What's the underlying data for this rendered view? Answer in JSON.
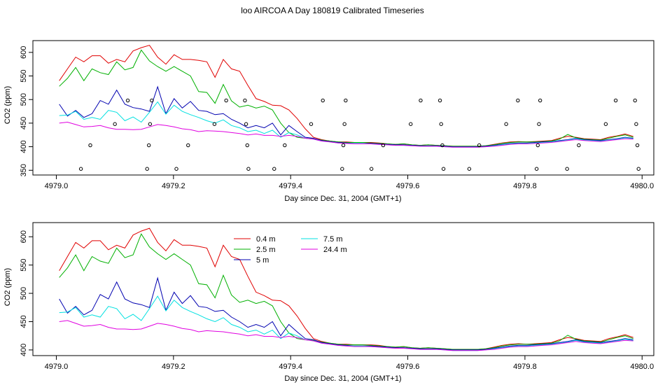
{
  "title": "loo AIRCOA A  Day 180819  Calibrated Timeseries",
  "colors": {
    "0.4 m": "#e00000",
    "2.5 m": "#00b000",
    "5 m": "#0000b0",
    "7.5 m": "#00e0e0",
    "24.4 m": "#e000e0"
  },
  "chart_data": [
    {
      "type": "line",
      "xlabel": "Day since Dec. 31, 2004 (GMT+1)",
      "ylabel": "CO2 (ppm)",
      "xlim": [
        4978.96,
        4980.02
      ],
      "ylim": [
        340,
        625
      ],
      "xticks": [
        "4979.0",
        "4979.2",
        "4979.4",
        "4979.6",
        "4979.8",
        "4980.0"
      ],
      "yticks": [
        "350",
        "400",
        "450",
        "500",
        "550",
        "600"
      ],
      "series_ref": "shared",
      "points": [
        {
          "x": 4979.042,
          "y": 353
        },
        {
          "x": 4979.058,
          "y": 403
        },
        {
          "x": 4979.1,
          "y": 448
        },
        {
          "x": 4979.122,
          "y": 498
        },
        {
          "x": 4979.155,
          "y": 353
        },
        {
          "x": 4979.158,
          "y": 403
        },
        {
          "x": 4979.16,
          "y": 448
        },
        {
          "x": 4979.163,
          "y": 498
        },
        {
          "x": 4979.205,
          "y": 353
        },
        {
          "x": 4979.225,
          "y": 403
        },
        {
          "x": 4979.27,
          "y": 448
        },
        {
          "x": 4979.29,
          "y": 498
        },
        {
          "x": 4979.322,
          "y": 498
        },
        {
          "x": 4979.324,
          "y": 448
        },
        {
          "x": 4979.326,
          "y": 403
        },
        {
          "x": 4979.328,
          "y": 353
        },
        {
          "x": 4979.372,
          "y": 353
        },
        {
          "x": 4979.39,
          "y": 403
        },
        {
          "x": 4979.435,
          "y": 448
        },
        {
          "x": 4979.455,
          "y": 498
        },
        {
          "x": 4979.488,
          "y": 353
        },
        {
          "x": 4979.49,
          "y": 403
        },
        {
          "x": 4979.492,
          "y": 448
        },
        {
          "x": 4979.494,
          "y": 498
        },
        {
          "x": 4979.538,
          "y": 353
        },
        {
          "x": 4979.558,
          "y": 403
        },
        {
          "x": 4979.605,
          "y": 448
        },
        {
          "x": 4979.622,
          "y": 498
        },
        {
          "x": 4979.655,
          "y": 498
        },
        {
          "x": 4979.657,
          "y": 448
        },
        {
          "x": 4979.659,
          "y": 403
        },
        {
          "x": 4979.661,
          "y": 353
        },
        {
          "x": 4979.705,
          "y": 353
        },
        {
          "x": 4979.722,
          "y": 403
        },
        {
          "x": 4979.768,
          "y": 448
        },
        {
          "x": 4979.788,
          "y": 498
        },
        {
          "x": 4979.82,
          "y": 353
        },
        {
          "x": 4979.822,
          "y": 403
        },
        {
          "x": 4979.824,
          "y": 448
        },
        {
          "x": 4979.826,
          "y": 498
        },
        {
          "x": 4979.872,
          "y": 353
        },
        {
          "x": 4979.892,
          "y": 403
        },
        {
          "x": 4979.938,
          "y": 448
        },
        {
          "x": 4979.955,
          "y": 498
        },
        {
          "x": 4979.988,
          "y": 498
        },
        {
          "x": 4979.99,
          "y": 448
        },
        {
          "x": 4979.992,
          "y": 403
        },
        {
          "x": 4979.994,
          "y": 353
        }
      ]
    },
    {
      "type": "line",
      "xlabel": "Day since Dec. 31, 2004 (GMT+1)",
      "ylabel": "CO2 (ppm)",
      "xlim": [
        4978.96,
        4980.02
      ],
      "ylim": [
        390,
        625
      ],
      "xticks": [
        "4979.0",
        "4979.2",
        "4979.4",
        "4979.6",
        "4979.8",
        "4980.0"
      ],
      "yticks": [
        "400",
        "450",
        "500",
        "550",
        "600"
      ],
      "legend": {
        "position": "top-center",
        "entries": [
          "0.4 m",
          "2.5 m",
          "5 m",
          "7.5 m",
          "24.4 m"
        ]
      },
      "series_ref": "shared"
    }
  ],
  "series": [
    {
      "name": "0.4 m",
      "values": [
        540,
        565,
        590,
        580,
        593,
        593,
        577,
        585,
        580,
        603,
        610,
        615,
        590,
        575,
        595,
        585,
        585,
        583,
        580,
        547,
        585,
        565,
        560,
        530,
        502,
        496,
        488,
        487,
        478,
        460,
        438,
        420
      ]
    },
    {
      "name": "2.5 m",
      "values": [
        528,
        545,
        568,
        540,
        565,
        557,
        553,
        580,
        563,
        568,
        605,
        582,
        570,
        560,
        570,
        560,
        550,
        517,
        515,
        492,
        532,
        497,
        484,
        488,
        482,
        486,
        478,
        450,
        430,
        420,
        418,
        417
      ]
    },
    {
      "name": "5 m",
      "values": [
        490,
        465,
        477,
        462,
        470,
        498,
        490,
        520,
        490,
        483,
        480,
        475,
        527,
        470,
        502,
        482,
        496,
        477,
        475,
        468,
        470,
        458,
        450,
        440,
        445,
        440,
        450,
        425,
        445,
        432,
        420,
        418
      ]
    },
    {
      "name": "7.5 m",
      "values": [
        466,
        467,
        475,
        458,
        462,
        458,
        477,
        473,
        455,
        463,
        452,
        473,
        495,
        469,
        488,
        475,
        468,
        462,
        455,
        450,
        457,
        445,
        440,
        432,
        435,
        428,
        435,
        420,
        430,
        425,
        418,
        416
      ]
    },
    {
      "name": "24.4 m",
      "values": [
        450,
        452,
        447,
        442,
        443,
        445,
        440,
        437,
        437,
        436,
        437,
        442,
        447,
        445,
        442,
        438,
        436,
        432,
        434,
        433,
        432,
        430,
        428,
        425,
        427,
        424,
        424,
        422,
        424,
        422,
        418,
        416
      ]
    }
  ]
}
